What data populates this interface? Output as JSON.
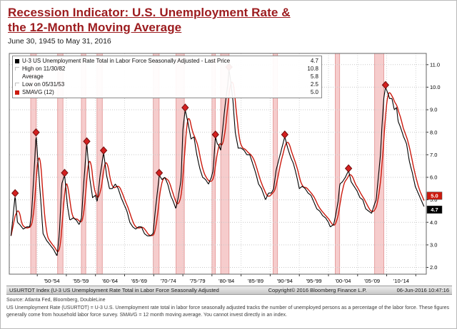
{
  "header": {
    "title_line1": "Recession Indicator: U.S. Unemployment Rate &",
    "title_line2": "the 12-Month Moving Average",
    "subtitle": "June 30, 1945 to May 31, 2016"
  },
  "legend": {
    "rows": [
      {
        "icon": "black-series-swatch",
        "swatch": "#000000",
        "label": "U-3 US Unemployment Rate Total in Labor Force Seasonally Adjusted - Last Price",
        "value": "4.7"
      },
      {
        "icon": "high-marker-icon",
        "swatch": null,
        "label": "High on 11/30/82",
        "value": "10.8"
      },
      {
        "icon": "average-marker-icon",
        "swatch": null,
        "label": "Average",
        "value": "5.8"
      },
      {
        "icon": "low-marker-icon",
        "swatch": null,
        "label": "Low on 05/31/53",
        "value": "2.5"
      },
      {
        "icon": "red-series-swatch",
        "swatch": "#cc1a0e",
        "label": "SMAVG (12)",
        "value": "5.0"
      }
    ]
  },
  "footer": {
    "left": "USURTOT Index (U-3 US Unemployment Rate Total in Labor Force Seasonally Adjusted",
    "copyright": "Copyright© 2016 Bloomberg Finance L.P.",
    "timestamp": "06-Jun-2016 10:47:16"
  },
  "notes": {
    "source": "Source: Atlanta Fed, Bloomberg, DoubleLine",
    "disclaimer": "US Unemployment Rate (USURTOT) = U-3 U.S. Unemployment rate total in labor force seasonally adjusted tracks the number of unemployed persons as a percentage of the labor force. These figures generally come from household labor force survey. SMAVG = 12 month moving average. You cannot invest directly in an index."
  },
  "chart_data": {
    "type": "line",
    "title": "Recession Indicator: U.S. Unemployment Rate & the 12-Month Moving Average",
    "xlim": [
      1945.2,
      2016.8
    ],
    "ylim": [
      1.7,
      11.5
    ],
    "yticks": [
      2,
      3,
      4,
      5,
      6,
      7,
      8,
      9,
      10,
      11
    ],
    "x_groups": [
      "'50-'54",
      "'55-'59",
      "'60-'64",
      "'65-'69",
      "'70-'74",
      "'75-'79",
      "'80-'84",
      "'85-'89",
      "'90-'94",
      "'95-'99",
      "'00-'04",
      "'05-'09",
      "'10-'14"
    ],
    "grid": true,
    "legend_position": "top-left",
    "stats": {
      "last_price": 4.7,
      "high_date": "11/30/82",
      "high": 10.8,
      "average": 5.8,
      "low_date": "05/31/53",
      "low": 2.5,
      "smavg_last": 5.0
    },
    "recessions": [
      [
        1948.88,
        1949.83
      ],
      [
        1953.5,
        1954.42
      ],
      [
        1957.58,
        1958.33
      ],
      [
        1960.25,
        1961.17
      ],
      [
        1969.92,
        1970.92
      ],
      [
        1973.83,
        1975.25
      ],
      [
        1980.0,
        1980.58
      ],
      [
        1981.5,
        1982.92
      ],
      [
        1990.5,
        1991.25
      ],
      [
        2001.17,
        2001.92
      ],
      [
        2007.92,
        2009.5
      ]
    ],
    "peak_markers": [
      [
        1946.2,
        5.2
      ],
      [
        1949.8,
        7.9
      ],
      [
        1954.7,
        6.1
      ],
      [
        1958.5,
        7.5
      ],
      [
        1961.4,
        7.1
      ],
      [
        1970.95,
        6.1
      ],
      [
        1975.4,
        9.0
      ],
      [
        1980.6,
        7.8
      ],
      [
        1982.92,
        10.8
      ],
      [
        1992.5,
        7.8
      ],
      [
        2003.45,
        6.3
      ],
      [
        2009.8,
        10.0
      ]
    ],
    "badges": [
      {
        "value": "5.0",
        "color": "#cc1a0e"
      },
      {
        "value": "4.7",
        "color": "#000000"
      }
    ],
    "colors": {
      "band": "#f6cccc",
      "band_edge": "#e6a0a0",
      "grid": "#c9c9c9",
      "border": "#666666"
    },
    "series": [
      {
        "name": "U-3 US Unemployment Rate Total in Labor Force Seasonally Adjusted",
        "color": "#000000",
        "points": [
          [
            1945.5,
            3.4
          ],
          [
            1945.9,
            4.4
          ],
          [
            1946.2,
            5.2
          ],
          [
            1946.6,
            4.0
          ],
          [
            1947.0,
            3.9
          ],
          [
            1947.6,
            3.7
          ],
          [
            1948.2,
            3.8
          ],
          [
            1948.7,
            3.8
          ],
          [
            1949.0,
            4.3
          ],
          [
            1949.4,
            6.0
          ],
          [
            1949.8,
            7.9
          ],
          [
            1950.2,
            6.4
          ],
          [
            1950.6,
            5.0
          ],
          [
            1951.0,
            3.5
          ],
          [
            1951.6,
            3.2
          ],
          [
            1952.2,
            3.0
          ],
          [
            1952.8,
            2.8
          ],
          [
            1953.4,
            2.5
          ],
          [
            1953.8,
            3.5
          ],
          [
            1954.2,
            5.7
          ],
          [
            1954.7,
            6.1
          ],
          [
            1955.2,
            4.7
          ],
          [
            1955.6,
            4.1
          ],
          [
            1956.2,
            4.2
          ],
          [
            1956.7,
            4.1
          ],
          [
            1957.2,
            3.9
          ],
          [
            1957.6,
            4.2
          ],
          [
            1958.0,
            5.8
          ],
          [
            1958.5,
            7.5
          ],
          [
            1959.0,
            6.0
          ],
          [
            1959.5,
            5.1
          ],
          [
            1960.0,
            5.2
          ],
          [
            1960.3,
            4.9
          ],
          [
            1960.8,
            6.1
          ],
          [
            1961.4,
            7.1
          ],
          [
            1961.9,
            6.1
          ],
          [
            1962.4,
            5.5
          ],
          [
            1962.9,
            5.5
          ],
          [
            1963.4,
            5.7
          ],
          [
            1963.9,
            5.5
          ],
          [
            1964.4,
            5.1
          ],
          [
            1964.9,
            4.8
          ],
          [
            1965.4,
            4.5
          ],
          [
            1965.9,
            4.0
          ],
          [
            1966.4,
            3.8
          ],
          [
            1966.9,
            3.7
          ],
          [
            1967.4,
            3.8
          ],
          [
            1967.9,
            3.8
          ],
          [
            1968.4,
            3.5
          ],
          [
            1968.9,
            3.4
          ],
          [
            1969.4,
            3.4
          ],
          [
            1969.9,
            3.5
          ],
          [
            1970.3,
            4.6
          ],
          [
            1970.7,
            5.5
          ],
          [
            1970.95,
            6.1
          ],
          [
            1971.4,
            5.9
          ],
          [
            1971.9,
            6.0
          ],
          [
            1972.4,
            5.7
          ],
          [
            1972.9,
            5.2
          ],
          [
            1973.4,
            4.9
          ],
          [
            1973.8,
            4.6
          ],
          [
            1974.2,
            5.1
          ],
          [
            1974.7,
            5.9
          ],
          [
            1975.0,
            8.1
          ],
          [
            1975.4,
            9.0
          ],
          [
            1975.9,
            8.4
          ],
          [
            1976.4,
            7.7
          ],
          [
            1976.9,
            7.8
          ],
          [
            1977.4,
            7.0
          ],
          [
            1977.9,
            6.4
          ],
          [
            1978.4,
            6.0
          ],
          [
            1978.9,
            5.9
          ],
          [
            1979.4,
            5.7
          ],
          [
            1979.9,
            6.0
          ],
          [
            1980.2,
            6.3
          ],
          [
            1980.6,
            7.8
          ],
          [
            1980.9,
            7.5
          ],
          [
            1981.2,
            7.4
          ],
          [
            1981.5,
            7.2
          ],
          [
            1981.9,
            8.3
          ],
          [
            1982.3,
            9.3
          ],
          [
            1982.7,
            10.1
          ],
          [
            1982.92,
            10.8
          ],
          [
            1983.2,
            10.3
          ],
          [
            1983.6,
            9.4
          ],
          [
            1984.0,
            8.0
          ],
          [
            1984.5,
            7.3
          ],
          [
            1985.0,
            7.3
          ],
          [
            1985.5,
            7.2
          ],
          [
            1986.0,
            7.0
          ],
          [
            1986.5,
            7.0
          ],
          [
            1987.0,
            6.6
          ],
          [
            1987.5,
            6.2
          ],
          [
            1988.0,
            5.7
          ],
          [
            1988.5,
            5.5
          ],
          [
            1989.2,
            5.0
          ],
          [
            1989.7,
            5.3
          ],
          [
            1990.2,
            5.3
          ],
          [
            1990.6,
            5.5
          ],
          [
            1991.0,
            6.3
          ],
          [
            1991.5,
            6.8
          ],
          [
            1992.0,
            7.3
          ],
          [
            1992.5,
            7.8
          ],
          [
            1993.0,
            7.3
          ],
          [
            1993.5,
            6.9
          ],
          [
            1994.0,
            6.6
          ],
          [
            1994.5,
            6.1
          ],
          [
            1995.0,
            5.5
          ],
          [
            1995.5,
            5.6
          ],
          [
            1996.0,
            5.5
          ],
          [
            1996.5,
            5.3
          ],
          [
            1997.0,
            5.2
          ],
          [
            1997.5,
            4.9
          ],
          [
            1998.0,
            4.6
          ],
          [
            1998.5,
            4.5
          ],
          [
            1999.0,
            4.3
          ],
          [
            1999.5,
            4.2
          ],
          [
            2000.0,
            4.0
          ],
          [
            2000.3,
            3.8
          ],
          [
            2000.9,
            3.9
          ],
          [
            2001.3,
            4.4
          ],
          [
            2001.7,
            5.0
          ],
          [
            2001.95,
            5.7
          ],
          [
            2002.4,
            5.8
          ],
          [
            2002.9,
            6.0
          ],
          [
            2003.45,
            6.3
          ],
          [
            2003.9,
            5.8
          ],
          [
            2004.4,
            5.6
          ],
          [
            2004.9,
            5.4
          ],
          [
            2005.4,
            5.1
          ],
          [
            2005.9,
            5.0
          ],
          [
            2006.4,
            4.6
          ],
          [
            2006.9,
            4.5
          ],
          [
            2007.4,
            4.4
          ],
          [
            2007.9,
            4.8
          ],
          [
            2008.2,
            5.0
          ],
          [
            2008.6,
            6.1
          ],
          [
            2008.9,
            6.9
          ],
          [
            2009.2,
            8.3
          ],
          [
            2009.5,
            9.5
          ],
          [
            2009.8,
            10.0
          ],
          [
            2010.1,
            9.8
          ],
          [
            2010.5,
            9.5
          ],
          [
            2010.9,
            9.5
          ],
          [
            2011.3,
            9.0
          ],
          [
            2011.7,
            9.1
          ],
          [
            2011.95,
            8.5
          ],
          [
            2012.4,
            8.2
          ],
          [
            2012.9,
            7.8
          ],
          [
            2013.4,
            7.5
          ],
          [
            2013.9,
            6.7
          ],
          [
            2014.4,
            6.2
          ],
          [
            2014.9,
            5.6
          ],
          [
            2015.4,
            5.3
          ],
          [
            2015.9,
            5.0
          ],
          [
            2016.42,
            4.7
          ]
        ]
      },
      {
        "name": "SMAVG (12)",
        "color": "#cc1a0e",
        "derived": "12-month trailing moving average of U-3 series"
      }
    ]
  }
}
